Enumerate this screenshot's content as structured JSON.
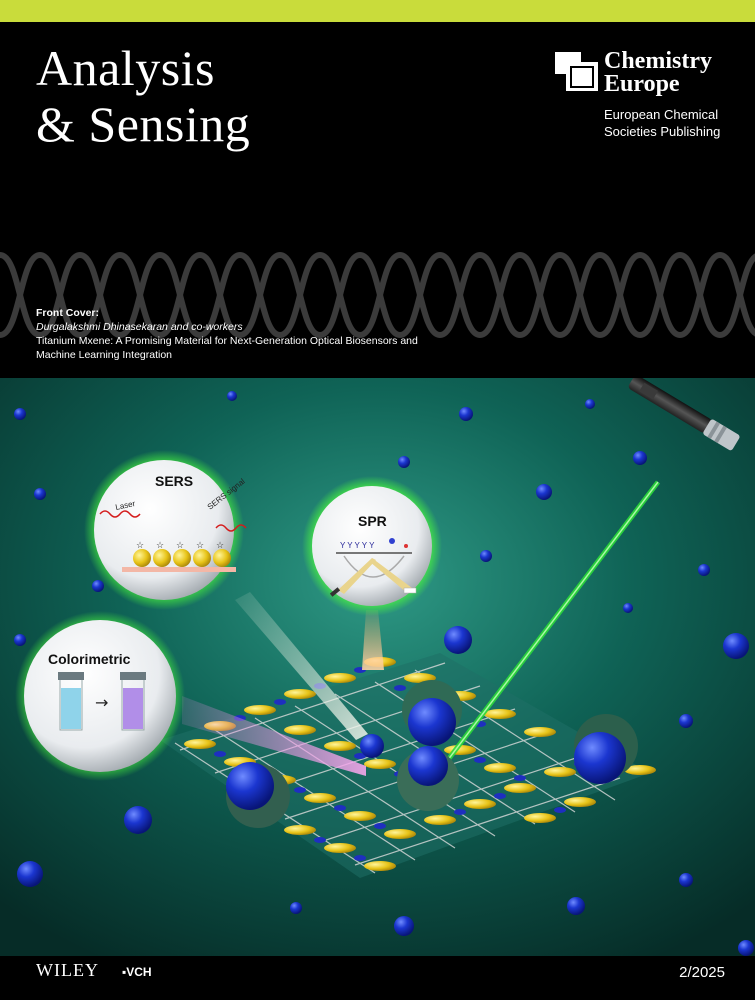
{
  "journal": {
    "title_line1": "Analysis",
    "title_line2": "& Sensing"
  },
  "publisher": {
    "name_line1": "Chemistry",
    "name_line2": "Europe",
    "sub_line1": "European Chemical",
    "sub_line2": "Societies Publishing"
  },
  "front_cover": {
    "label": "Front Cover:",
    "authors": "Durgalakshmi Dhinasekaran and co-workers",
    "article_line1": "Titanium Mxene: A Promising Material for Next-Generation Optical Biosensors and",
    "article_line2": "Machine Learning Integration"
  },
  "illustration": {
    "sers_title": "SERS",
    "laser_label": "Laser",
    "sers_signal_label": "SERS signal",
    "spr_title": "SPR",
    "colorimetric_title": "Colorimetric"
  },
  "footer": {
    "wiley": "WILEY",
    "vch": "VCH",
    "issue": "2/2025"
  },
  "colors": {
    "accent_bar": "#c9dc3b",
    "background": "#000000",
    "scene_teal": "#0d5c4e",
    "laser_green": "#2bd83a",
    "sphere_blue": "#1830c8"
  }
}
